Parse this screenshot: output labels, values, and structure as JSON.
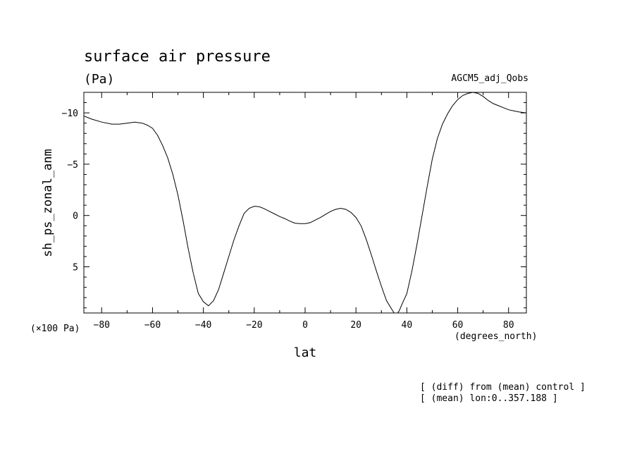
{
  "chart_data": {
    "type": "line",
    "title": "surface air pressure",
    "units": "(Pa)",
    "model": "AGCM5_adj_Qobs",
    "ylabel": "sh_ps_zonal_anm",
    "yscale": "(×100 Pa)",
    "xlabel": "lat",
    "xunit": "(degrees_north)",
    "notes": [
      "[ (diff) from (mean) control ]",
      "[ (mean) lon:0..357.188 ]"
    ],
    "xlim": [
      -87,
      87
    ],
    "ylim": [
      -12,
      9.5
    ],
    "y_inverted": true,
    "xticks": [
      -80,
      -60,
      -40,
      -20,
      0,
      20,
      40,
      60,
      80
    ],
    "xtick_labels": [
      "−80",
      "−60",
      "−40",
      "−20",
      "0",
      "20",
      "40",
      "60",
      "80"
    ],
    "yticks": [
      -10,
      -5,
      0,
      5
    ],
    "ytick_labels": [
      "−10",
      "−5",
      "0",
      "5"
    ],
    "grid": false,
    "series": [
      {
        "x": [
          -87,
          -84,
          -80,
          -76,
          -73,
          -70,
          -67,
          -64,
          -62,
          -60,
          -58,
          -56,
          -54,
          -52,
          -50,
          -48,
          -46,
          -44,
          -42,
          -40,
          -38,
          -36,
          -34,
          -32,
          -30,
          -28,
          -26,
          -24,
          -22,
          -20,
          -18,
          -16,
          -14,
          -12,
          -10,
          -8,
          -6,
          -4,
          -2,
          0,
          2,
          4,
          6,
          8,
          10,
          12,
          14,
          16,
          18,
          20,
          22,
          24,
          26,
          28,
          30,
          32,
          34,
          35,
          36,
          37,
          38,
          40,
          42,
          44,
          46,
          48,
          50,
          52,
          54,
          56,
          58,
          60,
          62,
          64,
          66,
          68,
          70,
          72,
          74,
          76,
          78,
          80,
          82,
          84,
          87
        ],
        "y": [
          -9.7,
          -9.4,
          -9.1,
          -8.9,
          -8.9,
          -9.0,
          -9.1,
          -9.0,
          -8.8,
          -8.5,
          -7.8,
          -6.8,
          -5.6,
          -4.0,
          -2.0,
          0.5,
          3.2,
          5.6,
          7.6,
          8.4,
          8.8,
          8.3,
          7.2,
          5.6,
          4.0,
          2.4,
          1.0,
          -0.2,
          -0.7,
          -0.9,
          -0.85,
          -0.65,
          -0.4,
          -0.15,
          0.1,
          0.3,
          0.55,
          0.75,
          0.8,
          0.8,
          0.7,
          0.45,
          0.2,
          -0.1,
          -0.4,
          -0.6,
          -0.7,
          -0.6,
          -0.3,
          0.2,
          1.0,
          2.3,
          3.8,
          5.4,
          6.9,
          8.3,
          9.1,
          9.5,
          9.6,
          9.3,
          8.7,
          7.6,
          5.4,
          2.8,
          0.0,
          -2.8,
          -5.5,
          -7.5,
          -8.9,
          -9.9,
          -10.7,
          -11.3,
          -11.7,
          -11.9,
          -12.0,
          -11.9,
          -11.6,
          -11.2,
          -10.9,
          -10.7,
          -10.5,
          -10.3,
          -10.2,
          -10.1,
          -10.0
        ]
      }
    ]
  }
}
